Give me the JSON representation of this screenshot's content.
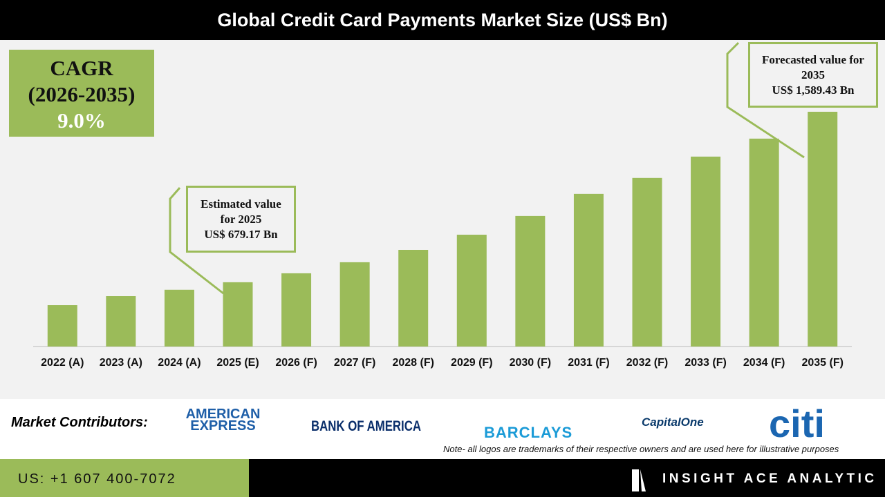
{
  "chart_data": {
    "type": "bar",
    "title": "Global Credit Card Payments Market Size (US$ Bn)",
    "categories": [
      "2022 (A)",
      "2023 (A)",
      "2024 (A)",
      "2025 (E)",
      "2026 (F)",
      "2027 (F)",
      "2028 (F)",
      "2029 (F)",
      "2030 (F)",
      "2031 (F)",
      "2032 (F)",
      "2033 (F)",
      "2034 (F)",
      "2035 (F)"
    ],
    "values": [
      557,
      605,
      639,
      679.17,
      727,
      786,
      852,
      933,
      1033,
      1151,
      1236,
      1350,
      1446,
      1589.43
    ],
    "value_labels": [
      null,
      null,
      null,
      "US$ 679.17 Bn",
      null,
      null,
      null,
      null,
      null,
      null,
      null,
      null,
      null,
      "US$ 1,589.43 Bn"
    ],
    "annotations": [
      {
        "text": "Estimated value for 2025"
      },
      {
        "text": "Forecasted value for 2035"
      }
    ],
    "color": "#9bbb59",
    "ylim": [
      336,
      1965
    ]
  },
  "cagr": {
    "label": "CAGR",
    "period": "(2026-2035)",
    "value": "9.0%"
  },
  "contributors": {
    "label": "Market Contributors:",
    "logos": [
      "AMERICAN EXPRESS",
      "BANK OF AMERICA",
      "BARCLAYS",
      "CapitalOne",
      "citi"
    ]
  },
  "note": "Note- all logos are trademarks of their respective owners and are used here for illustrative purposes",
  "contact": "US: +1 607 400-7072",
  "brand": "INSIGHT ACE ANALYTIC"
}
